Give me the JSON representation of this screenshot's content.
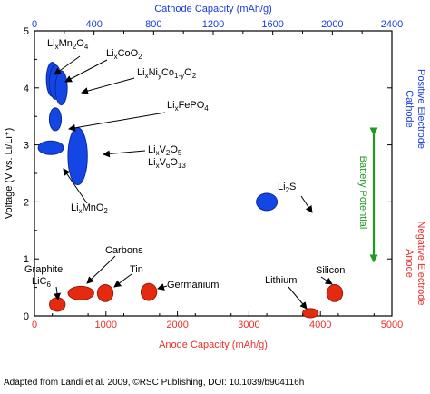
{
  "chart_data": {
    "type": "scatter",
    "x_bottom": {
      "label": "Anode Capacity (mAh/g)",
      "range": [
        0,
        5000
      ],
      "ticks": [
        0,
        1000,
        2000,
        3000,
        4000,
        5000
      ],
      "tick_labels": [
        "0",
        "1000",
        "2000",
        "3000",
        "4000",
        "5000"
      ],
      "color": "#e8302a"
    },
    "x_top": {
      "label": "Cathode Capacity (mAh/g)",
      "range": [
        0,
        2400
      ],
      "ticks": [
        0,
        400,
        800,
        1200,
        1600,
        2000,
        2400
      ],
      "tick_labels": [
        "0",
        "400",
        "800",
        "1200",
        "1600",
        "2000",
        "2400"
      ],
      "color": "#1a3be0"
    },
    "y": {
      "label": "Voltage (V vs. Li/Li⁺)",
      "range": [
        0,
        5
      ],
      "ticks": [
        0,
        1,
        2,
        3,
        4,
        5
      ],
      "tick_labels": [
        "0",
        "1",
        "2",
        "3",
        "4",
        "5"
      ]
    },
    "right_labels": {
      "cathode": [
        "Cathode",
        "Positive Electrode"
      ],
      "anode": [
        "Anode",
        "Negative Electrode"
      ],
      "potential": "Battery Potential"
    },
    "colors": {
      "cathode": "#1446e6",
      "anode": "#e62a10",
      "potential": "#1f9a22"
    },
    "cathode_series": [
      {
        "label": "LixMn2O4",
        "capacity": 120,
        "voltage": 4.15,
        "cap_spread": 40,
        "v_spread": 0.3
      },
      {
        "label": "LixCoO2",
        "capacity": 140,
        "voltage": 4.1,
        "cap_spread": 40,
        "v_spread": 0.3
      },
      {
        "label": "LixNiyCo1-yO2",
        "capacity": 180,
        "voltage": 4.0,
        "cap_spread": 40,
        "v_spread": 0.3
      },
      {
        "label": "LixFePO4",
        "capacity": 140,
        "voltage": 3.45,
        "cap_spread": 40,
        "v_spread": 0.2
      },
      {
        "label": "LixV2O5 / LixV6O13",
        "capacity": 290,
        "voltage": 2.8,
        "cap_spread": 65,
        "v_spread": 0.5
      },
      {
        "label": "LixMnO2",
        "capacity": 110,
        "voltage": 2.95,
        "cap_spread": 85,
        "v_spread": 0.12
      },
      {
        "label": "Li2S",
        "capacity": 1560,
        "voltage": 2.0,
        "cap_spread": 70,
        "v_spread": 0.15
      }
    ],
    "anode_series": [
      {
        "label": "Graphite LiC6",
        "capacity": 320,
        "voltage": 0.2,
        "cap_spread": 110,
        "v_spread": 0.12
      },
      {
        "label": "Carbons",
        "capacity": 650,
        "voltage": 0.4,
        "cap_spread": 180,
        "v_spread": 0.12
      },
      {
        "label": "Tin",
        "capacity": 990,
        "voltage": 0.4,
        "cap_spread": 110,
        "v_spread": 0.15
      },
      {
        "label": "Germanium",
        "capacity": 1600,
        "voltage": 0.42,
        "cap_spread": 110,
        "v_spread": 0.15
      },
      {
        "label": "Lithium",
        "capacity": 3860,
        "voltage": 0.05,
        "cap_spread": 110,
        "v_spread": 0.08
      },
      {
        "label": "Silicon",
        "capacity": 4200,
        "voltage": 0.4,
        "cap_spread": 110,
        "v_spread": 0.15
      }
    ],
    "grid": false,
    "legend": "none"
  },
  "annotations": {
    "graphite_line1": "Graphite",
    "graphite_line2": "LiC",
    "graphite_sub": "6",
    "carbons": "Carbons",
    "tin": "Tin",
    "germanium": "Germanium",
    "lithium": "Lithium",
    "silicon": "Silicon",
    "li2s_a": "Li",
    "li2s_sub": "2",
    "li2s_b": "S"
  },
  "caption": "Adapted from Landi et al. 2009, ©RSC Publishing, DOI: 10.1039/b904116h"
}
